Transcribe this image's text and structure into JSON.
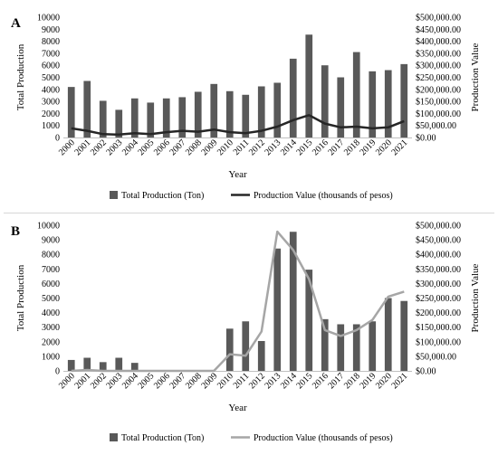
{
  "chart_data": [
    {
      "type": "bar",
      "panel_letter": "A",
      "title": "",
      "xlabel": "Year",
      "ylabel": "Total Production",
      "y2label": "Production Value",
      "ylim": [
        0,
        10000
      ],
      "y2lim": [
        0,
        500000
      ],
      "yticks": [
        "0",
        "1000",
        "2000",
        "3000",
        "4000",
        "5000",
        "6000",
        "7000",
        "8000",
        "9000",
        "10000"
      ],
      "y2ticks": [
        "$0.00",
        "$50,000.00",
        "$100,000.00",
        "$150,000.00",
        "$200,000.00",
        "$250,000.00",
        "$300,000.00",
        "$350,000.00",
        "$400,000.00",
        "$450,000.00",
        "$500,000.00"
      ],
      "categories": [
        "2000",
        "2001",
        "2002",
        "2003",
        "2004",
        "2005",
        "2006",
        "2007",
        "2008",
        "2009",
        "2010",
        "2011",
        "2012",
        "2013",
        "2014",
        "2015",
        "2016",
        "2017",
        "2018",
        "2019",
        "2020",
        "2021"
      ],
      "series": [
        {
          "name": "Total Production (Ton)",
          "kind": "bar",
          "axis": "left",
          "color": "#595959",
          "values": [
            4200,
            4700,
            3050,
            2300,
            3250,
            2900,
            3250,
            3350,
            3800,
            4450,
            3850,
            3550,
            4250,
            4550,
            6550,
            8550,
            6000,
            5000,
            7100,
            5500,
            5600,
            6100
          ]
        },
        {
          "name": "Production Value (thousands of pesos)",
          "kind": "line",
          "axis": "right",
          "color": "#262626",
          "values": [
            38000,
            28000,
            14000,
            12000,
            18000,
            14000,
            22000,
            28000,
            24000,
            33000,
            22000,
            18000,
            28000,
            45000,
            72000,
            93000,
            58000,
            42000,
            45000,
            38000,
            42000,
            68000
          ]
        }
      ],
      "legend_position": "bottom",
      "grid": false
    },
    {
      "type": "bar",
      "panel_letter": "B",
      "title": "",
      "xlabel": "Year",
      "ylabel": "Total Production",
      "y2label": "Production Value",
      "ylim": [
        0,
        10000
      ],
      "y2lim": [
        0,
        500000
      ],
      "yticks": [
        "0",
        "1000",
        "2000",
        "3000",
        "4000",
        "5000",
        "6000",
        "7000",
        "8000",
        "9000",
        "10000"
      ],
      "y2ticks": [
        "$0.00",
        "$50,000.00",
        "$100,000.00",
        "$150,000.00",
        "$200,000.00",
        "$250,000.00",
        "$300,000.00",
        "$350,000.00",
        "$400,000.00",
        "$450,000.00",
        "$500,000.00"
      ],
      "categories": [
        "2000",
        "2001",
        "2002",
        "2003",
        "2004",
        "2005",
        "2006",
        "2007",
        "2008",
        "2009",
        "2010",
        "2011",
        "2012",
        "2013",
        "2014",
        "2015",
        "2016",
        "2017",
        "2018",
        "2019",
        "2020",
        "2021"
      ],
      "series": [
        {
          "name": "Total Production (Ton)",
          "kind": "bar",
          "axis": "left",
          "color": "#595959",
          "values": [
            750,
            900,
            600,
            900,
            550,
            0,
            0,
            0,
            0,
            0,
            2900,
            3400,
            2050,
            8400,
            9550,
            6950,
            3550,
            3200,
            3200,
            3400,
            5000,
            4800
          ]
        },
        {
          "name": "Production Value (thousands of pesos)",
          "kind": "line",
          "axis": "right",
          "color": "#a6a6a6",
          "values": [
            0,
            3000,
            0,
            0,
            0,
            0,
            0,
            0,
            0,
            0,
            57000,
            52000,
            135000,
            478000,
            415000,
            315000,
            140000,
            120000,
            140000,
            175000,
            255000,
            272000
          ]
        }
      ],
      "legend_position": "bottom",
      "grid": false
    }
  ]
}
